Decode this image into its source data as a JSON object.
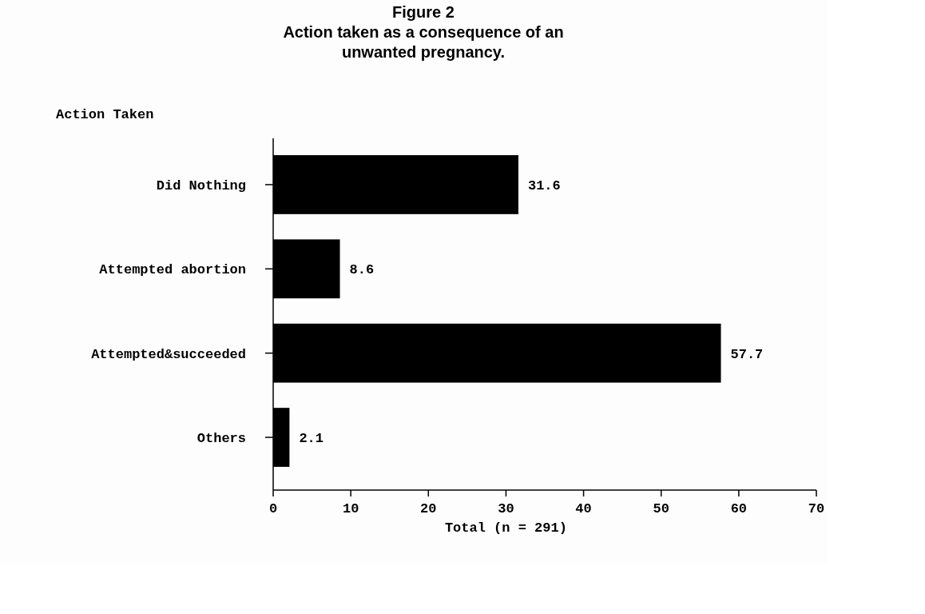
{
  "chart_data": {
    "type": "bar",
    "orientation": "horizontal",
    "title": "Figure 2\nAction taken as a consequence of an\nunwanted pregnancy.",
    "ylabel": "Action Taken",
    "xlabel": "Total (n = 291)",
    "categories": [
      "Did Nothing",
      "Attempted abortion",
      "Attempted&succeeded",
      "Others"
    ],
    "values": [
      31.6,
      8.6,
      57.7,
      2.1
    ],
    "color": "#000000",
    "xlim": [
      0,
      70
    ],
    "xticks": [
      0,
      10,
      20,
      30,
      40,
      50,
      60,
      70
    ],
    "data_labels": true,
    "grid": false
  }
}
